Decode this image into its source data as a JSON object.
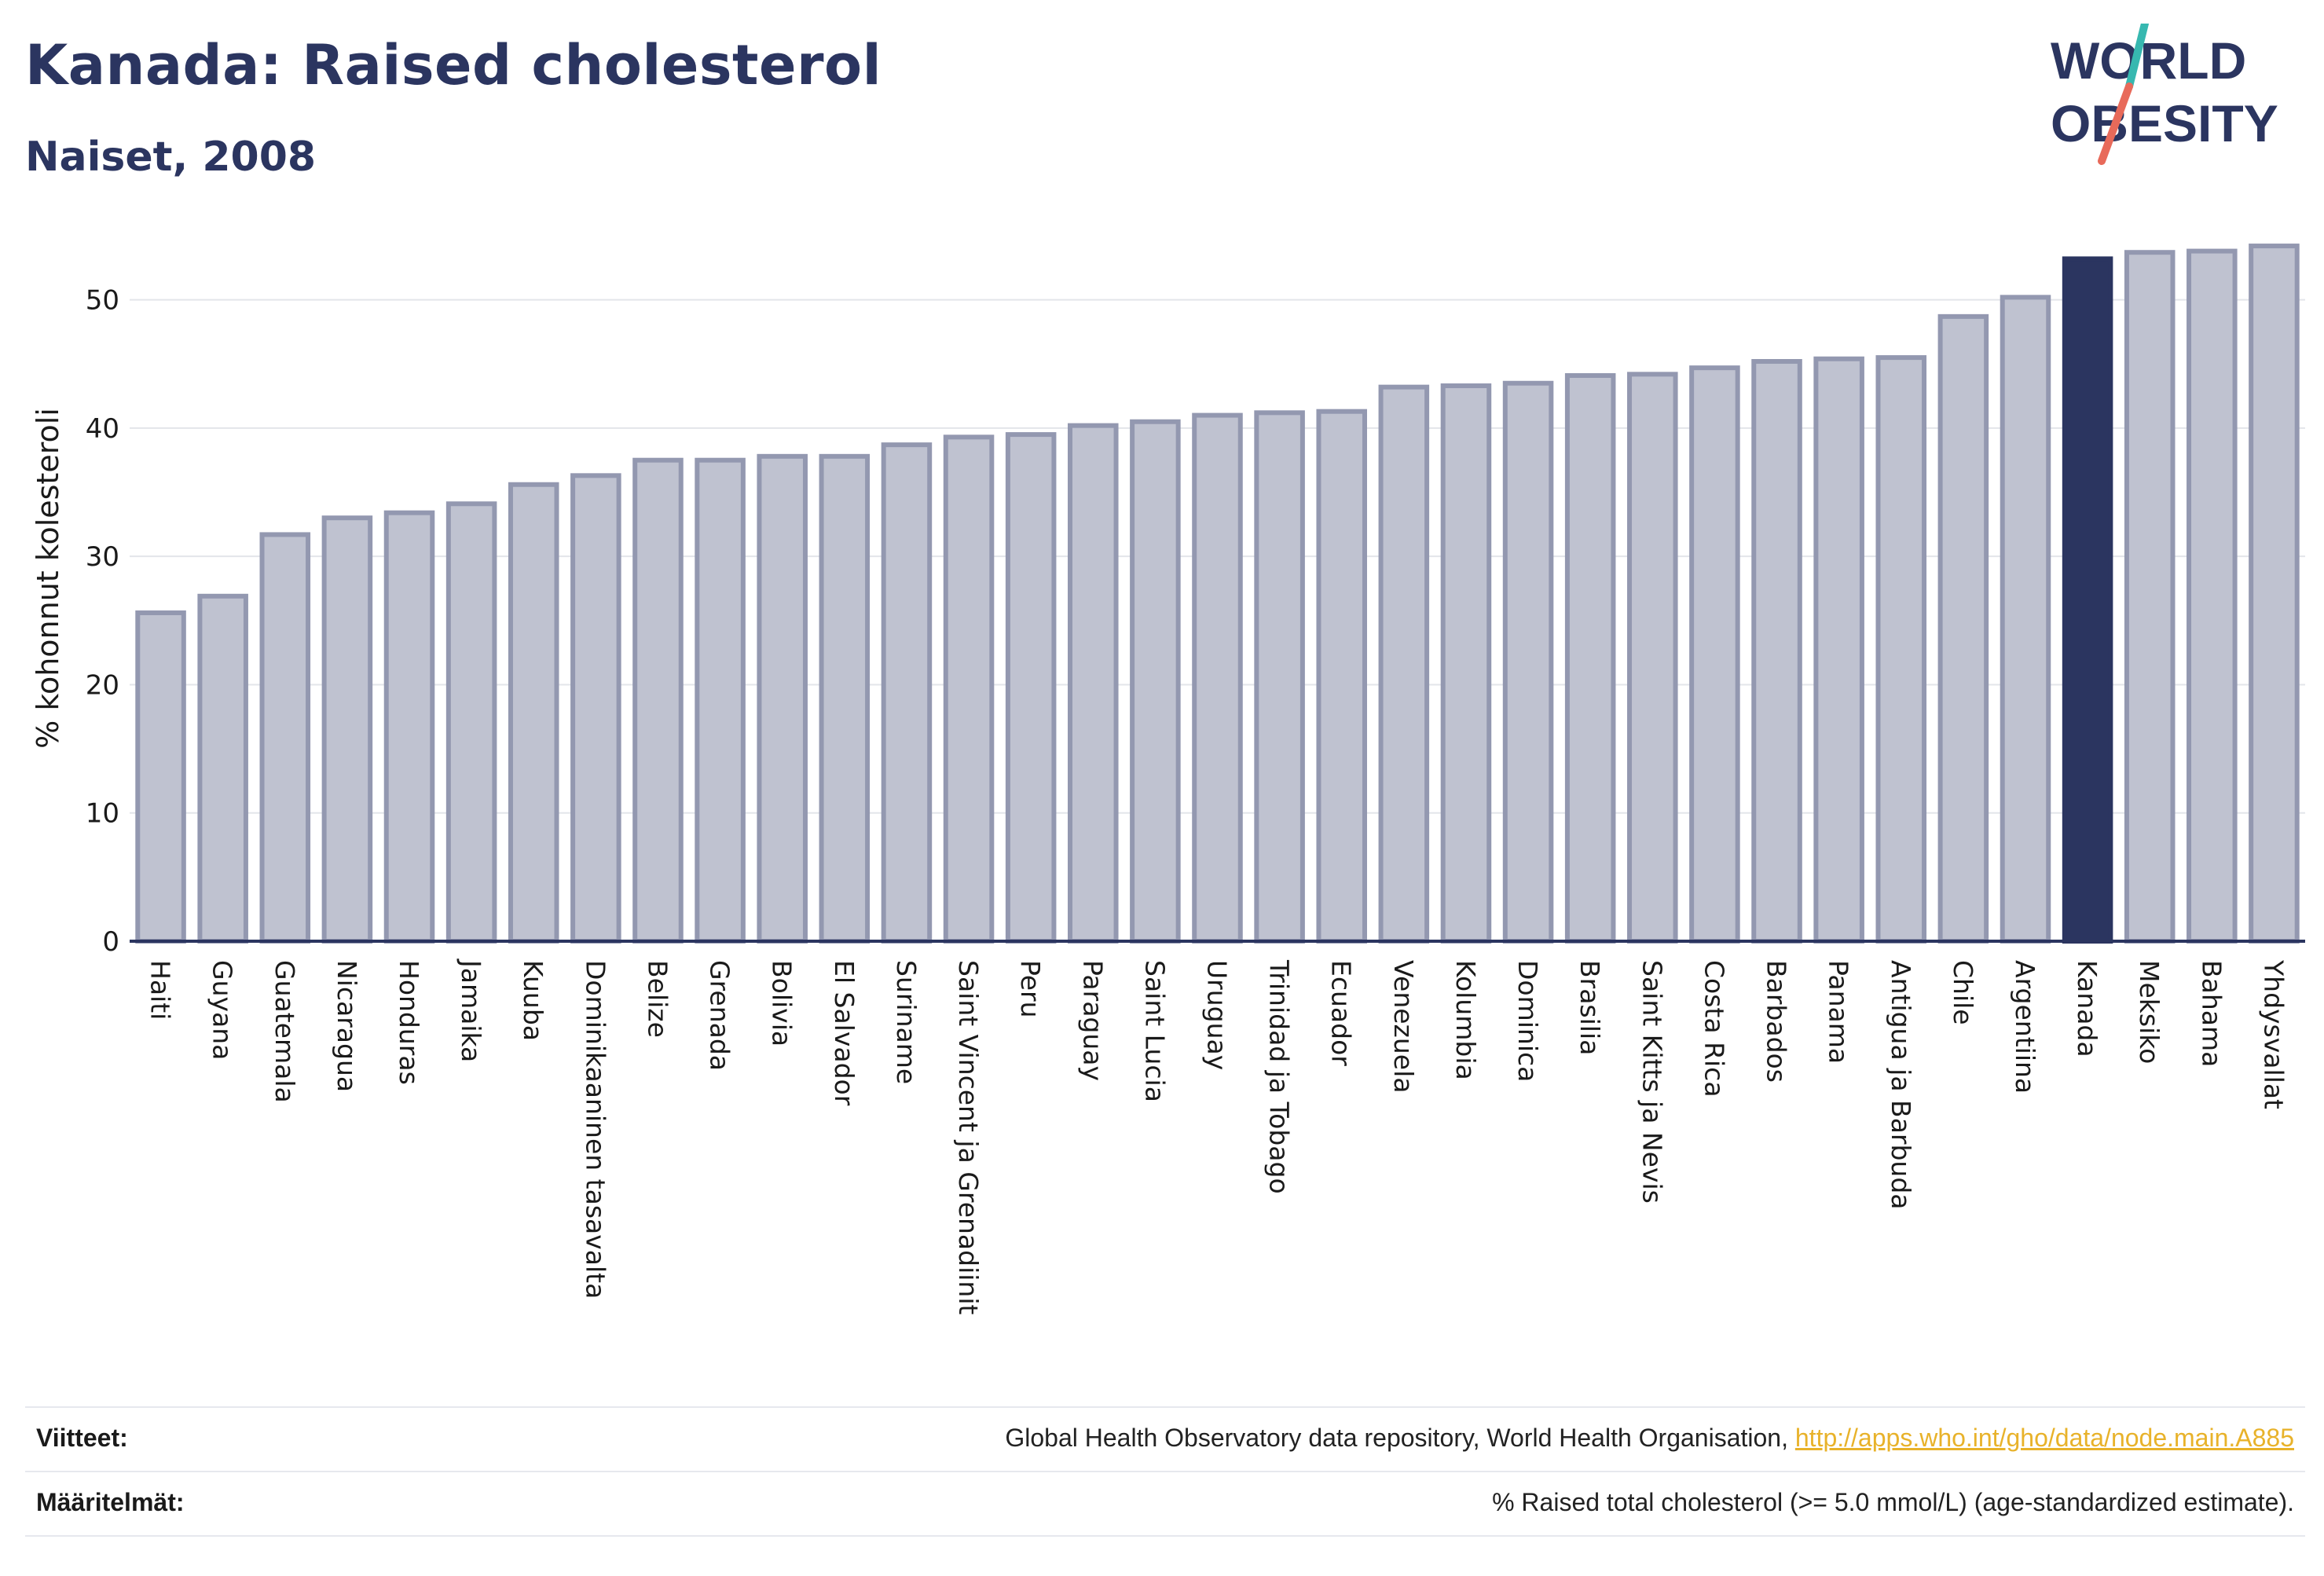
{
  "title": "Kanada: Raised cholesterol",
  "subtitle": "Naiset, 2008",
  "logo": {
    "line1": "WORLD",
    "line2": "OBESITY",
    "colors": {
      "text": "#2b3560",
      "slash_teal": "#37b8b0",
      "slash_coral": "#e86a5a"
    }
  },
  "colors": {
    "bar": "#bfc2d0",
    "bar_stroke": "#9398b0",
    "highlight": "#2b3560",
    "grid": "#e3e5ea",
    "axis": "#2b3560"
  },
  "chart_data": {
    "type": "bar",
    "ylabel": "% kohonnut kolesteroli",
    "ylim": [
      0,
      55
    ],
    "yticks": [
      0,
      10,
      20,
      30,
      40,
      50
    ],
    "grid": true,
    "highlight": "Kanada",
    "categories": [
      "Haiti",
      "Guyana",
      "Guatemala",
      "Nicaragua",
      "Honduras",
      "Jamaika",
      "Kuuba",
      "Dominikaaninen tasavalta",
      "Belize",
      "Grenada",
      "Bolivia",
      "El Salvador",
      "Suriname",
      "Saint Vincent ja Grenadiinit",
      "Peru",
      "Paraguay",
      "Saint Lucia",
      "Uruguay",
      "Trinidad ja Tobago",
      "Ecuador",
      "Venezuela",
      "Kolumbia",
      "Dominica",
      "Brasilia",
      "Saint Kitts ja Nevis",
      "Costa Rica",
      "Barbados",
      "Panama",
      "Antigua ja Barbuda",
      "Chile",
      "Argentiina",
      "Kanada",
      "Meksiko",
      "Bahama",
      "Yhdysvallat"
    ],
    "values": [
      25.6,
      26.9,
      31.7,
      33.0,
      33.4,
      34.1,
      35.6,
      36.3,
      37.5,
      37.5,
      37.8,
      37.8,
      38.7,
      39.3,
      39.5,
      40.2,
      40.5,
      41.0,
      41.2,
      41.3,
      43.2,
      43.3,
      43.5,
      44.1,
      44.2,
      44.7,
      45.2,
      45.4,
      45.5,
      48.7,
      50.2,
      53.2,
      53.7,
      53.8,
      54.2
    ]
  },
  "footer": {
    "sources_label": "Viitteet:",
    "sources_text": "Global Health Observatory data repository, World Health Organisation, ",
    "sources_link": "http://apps.who.int/gho/data/node.main.A885",
    "definitions_label": "Määritelmät:",
    "definitions_text": "% Raised total cholesterol (>= 5.0 mmol/L) (age-standardized estimate)."
  }
}
